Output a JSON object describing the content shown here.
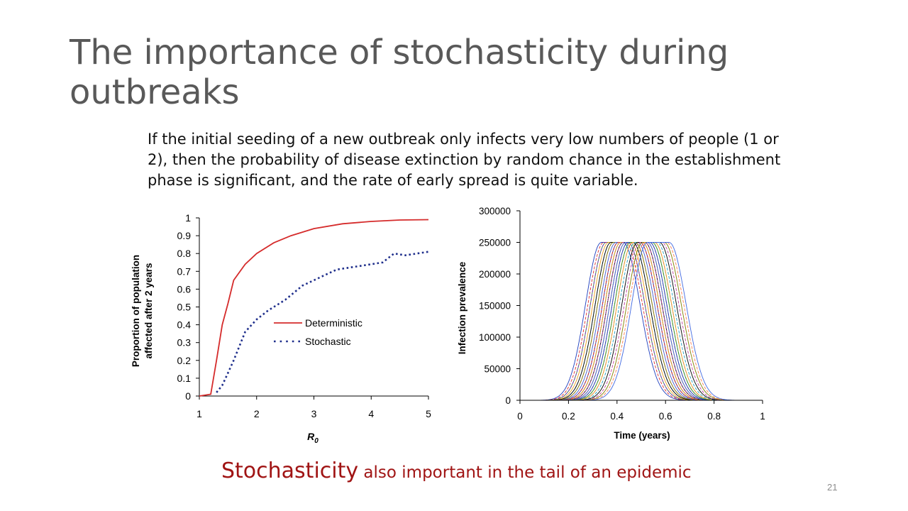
{
  "slide": {
    "title": "The importance of stochasticity during outbreaks",
    "body": "If the initial seeding of a new outbreak only infects very low numbers of people (1 or 2), then the probability of disease extinction by random chance in the establishment phase is significant, and the rate of early spread is quite variable.",
    "tail_note_big": "Stochasticity",
    "tail_note_small": " also important in the tail of an epidemic",
    "number": "21"
  },
  "colors": {
    "title": "#595959",
    "accent": "#a01414",
    "deterministic": "#d52b2b",
    "stochastic": "#1f2f8c"
  },
  "chart_data": [
    {
      "type": "line",
      "title": "",
      "xlabel": "R",
      "xlabel_sub": "0",
      "ylabel": "Proportion of population affected after 2 years",
      "xlim": [
        1,
        5
      ],
      "ylim": [
        0,
        1
      ],
      "xticks": [
        "1",
        "2",
        "3",
        "4",
        "5"
      ],
      "yticks": [
        "0",
        "0.1",
        "0.2",
        "0.3",
        "0.4",
        "0.5",
        "0.6",
        "0.7",
        "0.8",
        "0.9",
        "1"
      ],
      "legend_position": "center-right",
      "series": [
        {
          "name": "Deterministic",
          "style": "solid",
          "x": [
            1.0,
            1.2,
            1.3,
            1.4,
            1.5,
            1.6,
            1.8,
            2.0,
            2.3,
            2.6,
            3.0,
            3.5,
            4.0,
            4.5,
            5.0
          ],
          "y": [
            0.0,
            0.01,
            0.2,
            0.4,
            0.52,
            0.65,
            0.74,
            0.8,
            0.86,
            0.9,
            0.94,
            0.967,
            0.98,
            0.988,
            0.99
          ]
        },
        {
          "name": "Stochastic",
          "style": "dotted",
          "x": [
            1.3,
            1.4,
            1.5,
            1.6,
            1.8,
            2.0,
            2.2,
            2.5,
            2.8,
            3.0,
            3.2,
            3.4,
            3.6,
            3.8,
            4.0,
            4.2,
            4.4,
            4.6,
            4.8,
            5.0
          ],
          "y": [
            0.02,
            0.06,
            0.13,
            0.2,
            0.36,
            0.43,
            0.48,
            0.54,
            0.62,
            0.65,
            0.68,
            0.71,
            0.72,
            0.73,
            0.74,
            0.75,
            0.8,
            0.79,
            0.8,
            0.81
          ]
        }
      ]
    },
    {
      "type": "line",
      "title": "",
      "xlabel": "Time (years)",
      "ylabel": "Infection prevalence",
      "xlim": [
        0,
        1
      ],
      "ylim": [
        0,
        300000
      ],
      "xticks": [
        "0",
        "0.2",
        "0.4",
        "0.6",
        "0.8",
        "1"
      ],
      "yticks": [
        "0",
        "50000",
        "100000",
        "150000",
        "200000",
        "250000",
        "300000"
      ],
      "legend_position": "none",
      "peak_value": 250000,
      "peak_times": [
        0.38,
        0.39,
        0.4,
        0.4,
        0.41,
        0.42,
        0.42,
        0.43,
        0.43,
        0.44,
        0.44,
        0.45,
        0.45,
        0.45,
        0.46,
        0.46,
        0.46,
        0.47,
        0.47,
        0.47,
        0.48,
        0.48,
        0.48,
        0.49,
        0.49,
        0.5,
        0.5,
        0.51,
        0.51,
        0.52,
        0.53,
        0.54,
        0.55,
        0.56,
        0.57
      ],
      "series_colors": [
        "#1f3fbf",
        "#e03030",
        "#2a9a2a",
        "#7b2fbf",
        "#f0a020",
        "#20a0c0",
        "#000000",
        "#c040a0",
        "#808000",
        "#ff7f50",
        "#4169e1",
        "#8b4513"
      ]
    }
  ]
}
